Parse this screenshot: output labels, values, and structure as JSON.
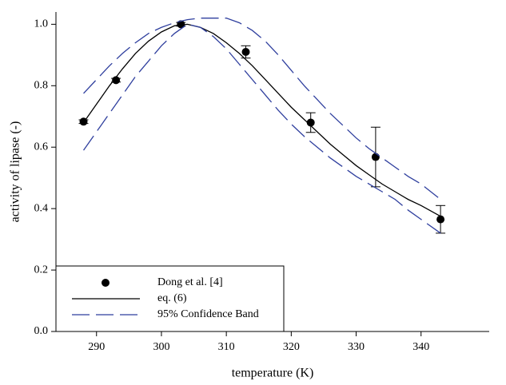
{
  "chart_data": {
    "type": "scatter-fit",
    "x_label": "temperature (K)",
    "y_label": "activity of lipase (-)",
    "xlim": [
      283.75,
      350.5
    ],
    "ylim": [
      0,
      1.04
    ],
    "xticks": [
      290,
      300,
      310,
      320,
      330,
      340
    ],
    "yticks": [
      {
        "value": 0,
        "label": "0.0"
      },
      0.2,
      0.4,
      0.6,
      0.8,
      {
        "value": 1,
        "label": "1.0"
      }
    ],
    "legend": "lower left",
    "series": [
      {
        "name": "Dong et al. [4]",
        "color": "#000000",
        "kind": "points",
        "x": [
          288,
          293,
          303,
          313,
          323,
          333,
          343
        ],
        "values": [
          0.683,
          0.818,
          1.0,
          0.91,
          0.68,
          0.568,
          0.365
        ],
        "errors": [
          0.006,
          0.006,
          0.006,
          0.02,
          0.032,
          0.097,
          0.045
        ]
      },
      {
        "name": "eq. (6)",
        "color": "#000000",
        "kind": "line",
        "x": [
          288,
          290,
          292,
          294,
          296,
          298,
          300,
          302,
          304,
          306,
          308,
          310,
          312,
          314,
          316,
          318,
          320,
          322,
          324,
          326,
          328,
          330,
          332,
          334,
          336,
          338,
          340,
          343
        ],
        "values": [
          0.68,
          0.74,
          0.8,
          0.855,
          0.905,
          0.945,
          0.975,
          0.995,
          1.0,
          0.99,
          0.97,
          0.94,
          0.905,
          0.865,
          0.82,
          0.775,
          0.73,
          0.69,
          0.65,
          0.61,
          0.575,
          0.54,
          0.51,
          0.48,
          0.455,
          0.43,
          0.41,
          0.375
        ]
      },
      {
        "name": "95% Confidence Band",
        "color": "#2f3f9e",
        "kind": "band",
        "x": [
          288,
          290,
          292,
          294,
          296,
          298,
          300,
          302,
          304,
          306,
          308,
          310,
          312,
          314,
          316,
          318,
          320,
          322,
          324,
          326,
          328,
          330,
          332,
          334,
          336,
          338,
          340,
          343
        ],
        "values": [
          0.775,
          0.82,
          0.865,
          0.905,
          0.94,
          0.97,
          0.99,
          1.005,
          1.015,
          1.02,
          1.02,
          1.02,
          1.005,
          0.98,
          0.945,
          0.9,
          0.85,
          0.8,
          0.755,
          0.71,
          0.67,
          0.63,
          0.595,
          0.565,
          0.535,
          0.505,
          0.48,
          0.43
        ],
        "lower": [
          0.59,
          0.65,
          0.71,
          0.77,
          0.83,
          0.88,
          0.93,
          0.97,
          1.0,
          0.99,
          0.96,
          0.92,
          0.87,
          0.82,
          0.77,
          0.72,
          0.675,
          0.635,
          0.6,
          0.565,
          0.535,
          0.505,
          0.48,
          0.455,
          0.43,
          0.395,
          0.365,
          0.32
        ]
      }
    ]
  }
}
